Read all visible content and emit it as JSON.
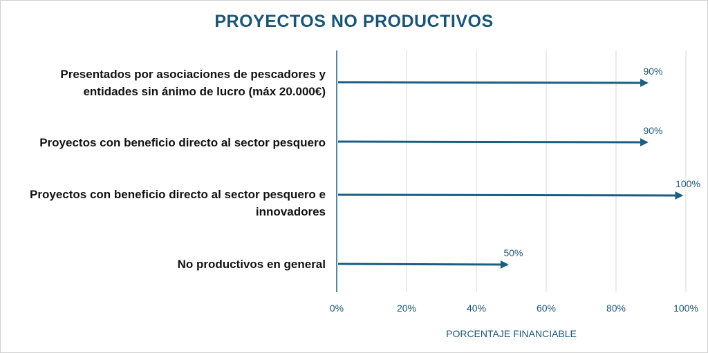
{
  "chart_data": {
    "type": "bar",
    "title": "PROYECTOS NO PRODUCTIVOS",
    "xlabel": "PORCENTAJE FINANCIABLE",
    "ylabel": "",
    "xlim": [
      0,
      100
    ],
    "x_ticks": [
      "0%",
      "20%",
      "40%",
      "60%",
      "80%",
      "100%"
    ],
    "grid": true,
    "color": "#1b5e80",
    "categories": [
      "Presentados por asociaciones de pescadores y entidades sin ánimo de lucro (máx 20.000€)",
      "Proyectos con beneficio directo al sector pesquero",
      "Proyectos con beneficio directo al sector pesquero e innovadores",
      "No productivos en general"
    ],
    "values": [
      90,
      90,
      100,
      50
    ],
    "data_labels": [
      "90%",
      "90%",
      "100%",
      "50%"
    ]
  }
}
